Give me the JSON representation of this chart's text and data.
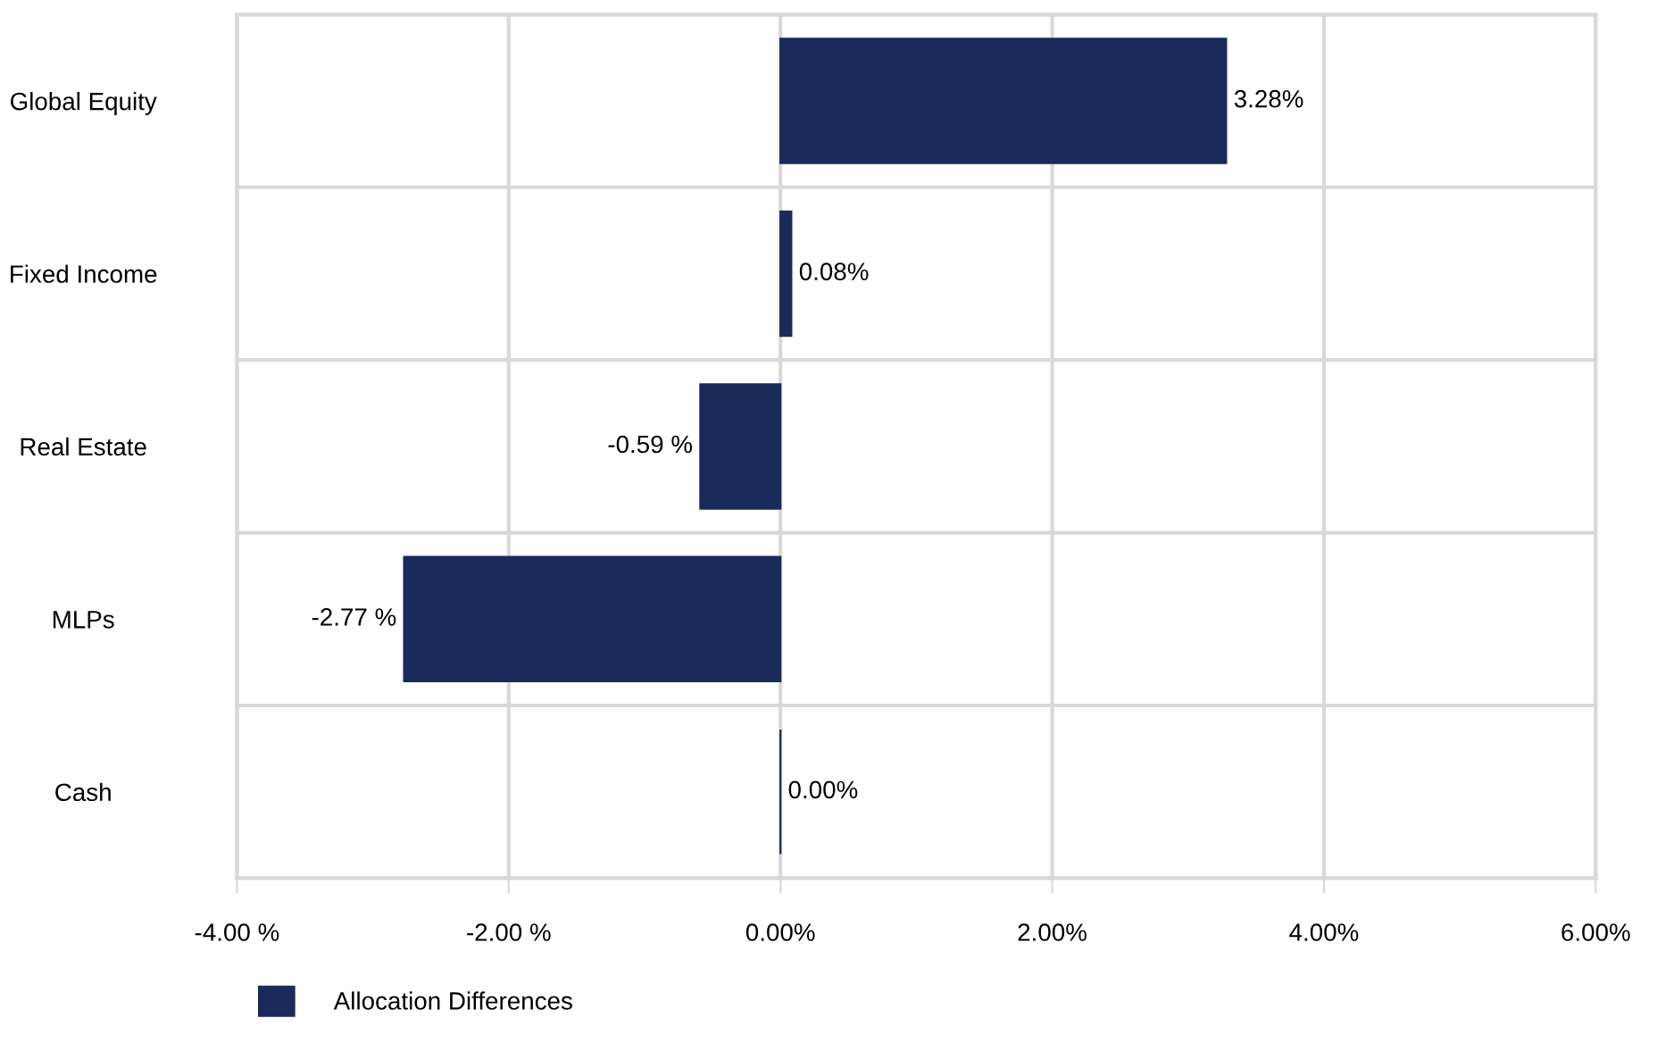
{
  "chart_data": {
    "type": "bar",
    "orientation": "horizontal",
    "categories": [
      "Global Equity",
      "Fixed Income",
      "Real Estate",
      "MLPs",
      "Cash"
    ],
    "series": [
      {
        "name": "Allocation Differences",
        "color": "#1a2a5a",
        "values": [
          3.28,
          0.08,
          -0.59,
          -2.77,
          0.0
        ],
        "value_labels": [
          "3.28%",
          "0.08%",
          "-0.59 %",
          "-2.77 %",
          "0.00%"
        ]
      }
    ],
    "xlim": [
      -4,
      6
    ],
    "xticks": [
      {
        "value": -4,
        "label": "-4.00 %"
      },
      {
        "value": -2,
        "label": "-2.00 %"
      },
      {
        "value": 0,
        "label": "0.00%"
      },
      {
        "value": 2,
        "label": "2.00%"
      },
      {
        "value": 4,
        "label": "4.00%"
      },
      {
        "value": 6,
        "label": "6.00%"
      }
    ],
    "grid": true,
    "legend": "bottom left"
  }
}
